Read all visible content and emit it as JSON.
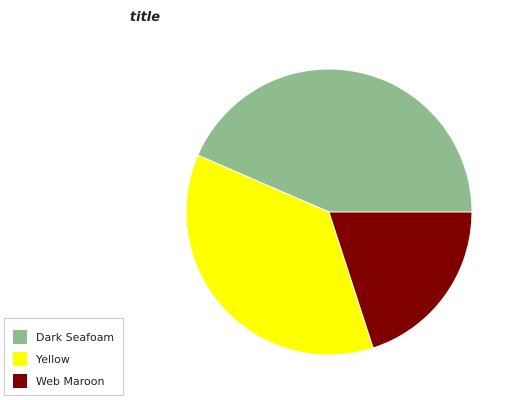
{
  "chart_data": {
    "type": "pie",
    "title": "title",
    "categories": [
      "Dark Seafoam",
      "Yellow",
      "Web Maroon"
    ],
    "values": [
      43.5,
      36.5,
      20.0
    ],
    "colors": [
      "#8fbc8f",
      "#ffff00",
      "#800000"
    ],
    "legend_position": "bottom-left"
  }
}
